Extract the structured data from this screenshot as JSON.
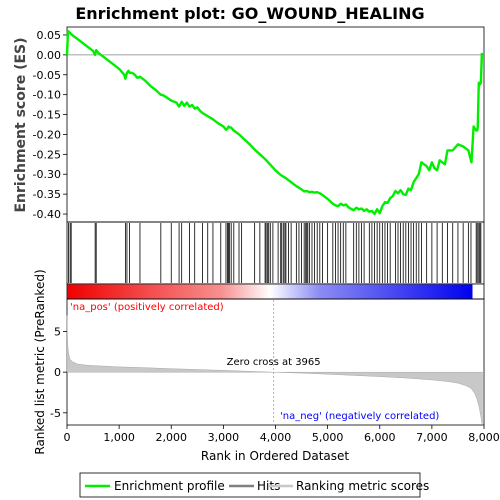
{
  "chart_data": {
    "type": "line",
    "title": "Enrichment plot: GO_WOUND_HEALING",
    "top_panel": {
      "ylabel": "Enrichment score (ES)",
      "ylim": [
        -0.42,
        0.07
      ],
      "yticks": [
        0.05,
        0.0,
        -0.05,
        -0.1,
        -0.15,
        -0.2,
        -0.25,
        -0.3,
        -0.35,
        -0.4
      ],
      "ytick_labels": [
        "0.05",
        "0.00",
        "-0.05",
        "-0.10",
        "-0.15",
        "-0.20",
        "-0.25",
        "-0.30",
        "-0.35",
        "-0.40"
      ],
      "series": [
        {
          "name": "Enrichment profile",
          "color": "#00ee00",
          "x": [
            0,
            20,
            60,
            100,
            200,
            300,
            400,
            500,
            540,
            560,
            600,
            700,
            800,
            900,
            1000,
            1100,
            1120,
            1150,
            1180,
            1200,
            1250,
            1300,
            1350,
            1400,
            1450,
            1500,
            1600,
            1700,
            1800,
            1850,
            1900,
            2000,
            2100,
            2150,
            2200,
            2250,
            2300,
            2350,
            2400,
            2450,
            2500,
            2550,
            2600,
            2700,
            2800,
            2900,
            3000,
            3050,
            3080,
            3100,
            3120,
            3150,
            3200,
            3300,
            3400,
            3500,
            3600,
            3700,
            3800,
            3900,
            4000,
            4100,
            4200,
            4300,
            4400,
            4500,
            4550,
            4600,
            4650,
            4700,
            4750,
            4800,
            4850,
            4900,
            5000,
            5050,
            5100,
            5150,
            5200,
            5250,
            5300,
            5350,
            5400,
            5450,
            5500,
            5550,
            5600,
            5650,
            5700,
            5750,
            5800,
            5850,
            5900,
            5950,
            6000,
            6050,
            6100,
            6150,
            6200,
            6250,
            6300,
            6350,
            6400,
            6450,
            6500,
            6550,
            6600,
            6650,
            6700,
            6750,
            6800,
            6850,
            6900,
            6950,
            7000,
            7050,
            7100,
            7150,
            7200,
            7250,
            7300,
            7400,
            7500,
            7600,
            7700,
            7740,
            7760,
            7800,
            7850,
            7870,
            7880,
            7900,
            7920,
            7940,
            7960
          ],
          "values": [
            0.0,
            0.06,
            0.055,
            0.05,
            0.04,
            0.03,
            0.02,
            0.01,
            0.0,
            0.012,
            0.005,
            -0.005,
            -0.015,
            -0.025,
            -0.035,
            -0.05,
            -0.06,
            -0.045,
            -0.04,
            -0.045,
            -0.045,
            -0.05,
            -0.058,
            -0.055,
            -0.06,
            -0.065,
            -0.078,
            -0.088,
            -0.1,
            -0.102,
            -0.106,
            -0.115,
            -0.12,
            -0.13,
            -0.118,
            -0.128,
            -0.12,
            -0.13,
            -0.126,
            -0.135,
            -0.132,
            -0.14,
            -0.146,
            -0.154,
            -0.162,
            -0.172,
            -0.18,
            -0.188,
            -0.185,
            -0.18,
            -0.182,
            -0.183,
            -0.19,
            -0.2,
            -0.212,
            -0.224,
            -0.238,
            -0.25,
            -0.262,
            -0.276,
            -0.29,
            -0.302,
            -0.31,
            -0.32,
            -0.33,
            -0.338,
            -0.343,
            -0.342,
            -0.345,
            -0.344,
            -0.346,
            -0.345,
            -0.348,
            -0.352,
            -0.362,
            -0.368,
            -0.374,
            -0.378,
            -0.38,
            -0.374,
            -0.378,
            -0.376,
            -0.383,
            -0.387,
            -0.39,
            -0.384,
            -0.388,
            -0.386,
            -0.392,
            -0.388,
            -0.394,
            -0.392,
            -0.4,
            -0.388,
            -0.398,
            -0.38,
            -0.37,
            -0.372,
            -0.36,
            -0.355,
            -0.342,
            -0.348,
            -0.34,
            -0.35,
            -0.352,
            -0.336,
            -0.34,
            -0.32,
            -0.31,
            -0.3,
            -0.27,
            -0.275,
            -0.28,
            -0.29,
            -0.27,
            -0.285,
            -0.29,
            -0.265,
            -0.27,
            -0.275,
            -0.24,
            -0.24,
            -0.225,
            -0.23,
            -0.24,
            -0.26,
            -0.27,
            -0.18,
            -0.19,
            -0.19,
            -0.185,
            -0.07,
            -0.075,
            -0.07,
            0.005
          ]
        }
      ]
    },
    "hits_panel": {
      "label": "Hits",
      "positions": [
        30,
        60,
        80,
        540,
        560,
        1120,
        1150,
        1200,
        1400,
        1800,
        2000,
        2150,
        2200,
        2350,
        2450,
        2600,
        2700,
        2800,
        2950,
        3050,
        3080,
        3100,
        3120,
        3150,
        3200,
        3300,
        3350,
        3600,
        3700,
        3800,
        3820,
        3850,
        3870,
        3900,
        3950,
        4050,
        4100,
        4120,
        4150,
        4180,
        4200,
        4250,
        4300,
        4400,
        4450,
        4500,
        4550,
        4580,
        4600,
        4620,
        4650,
        4700,
        4750,
        4800,
        4850,
        4900,
        5000,
        5100,
        5150,
        5200,
        5250,
        5300,
        5350,
        5500,
        5550,
        5600,
        5650,
        5700,
        5800,
        5850,
        5900,
        5950,
        6000,
        6050,
        6100,
        6150,
        6200,
        6300,
        6350,
        6400,
        6450,
        6500,
        6550,
        6600,
        6650,
        6700,
        6750,
        6800,
        6900,
        7000,
        7100,
        7200,
        7300,
        7400,
        7500,
        7600,
        7700,
        7750,
        7850,
        7870,
        7900,
        7920,
        7940
      ]
    },
    "bottom_panel": {
      "ylabel": "Ranked list metric (PreRanked)",
      "xlabel": "Rank in Ordered Dataset",
      "ylim": [
        -6.5,
        9
      ],
      "yticks": [
        5,
        0,
        -5
      ],
      "ytick_labels": [
        "5",
        "0",
        "-5"
      ],
      "metric_curve": {
        "name": "Ranking metric scores",
        "color": "#c8c8c8",
        "x": [
          0,
          5,
          15,
          30,
          60,
          100,
          200,
          400,
          700,
          1000,
          1500,
          2000,
          2500,
          3000,
          3500,
          3965,
          4500,
          5000,
          5500,
          6000,
          6500,
          7000,
          7300,
          7500,
          7650,
          7750,
          7820,
          7870,
          7910,
          7940,
          7960,
          7970
        ],
        "values": [
          7.0,
          5.0,
          3.2,
          2.3,
          1.6,
          1.3,
          1.0,
          0.85,
          0.75,
          0.65,
          0.55,
          0.42,
          0.33,
          0.22,
          0.1,
          0.0,
          -0.12,
          -0.25,
          -0.4,
          -0.55,
          -0.72,
          -0.95,
          -1.15,
          -1.35,
          -1.65,
          -2.0,
          -2.6,
          -3.4,
          -4.4,
          -5.5,
          -6.3,
          -6.5
        ]
      },
      "zero_cross": 3965,
      "annotations": {
        "zero_cross": "Zero cross at 3965",
        "pos": "'na_pos' (positively correlated)",
        "neg": "'na_neg' (negatively correlated)"
      }
    },
    "xlim": [
      0,
      8000
    ],
    "xticks": [
      0,
      1000,
      2000,
      3000,
      4000,
      5000,
      6000,
      7000,
      8000
    ],
    "xtick_labels": [
      "0",
      "1,000",
      "2,000",
      "3,000",
      "4,000",
      "5,000",
      "6,000",
      "7,000",
      "8,000"
    ],
    "n_genes": 7970,
    "colors": {
      "profile": "#00ee00",
      "pos_annot": "#ff0000",
      "neg_annot": "#0000ff",
      "bar_pos": "#f00000",
      "bar_mid": "#ffffff",
      "bar_neg": "#0000f0"
    },
    "legend": {
      "items": [
        {
          "label": "Enrichment profile",
          "color": "#00ee00"
        },
        {
          "label": "Hits",
          "color": "#808080"
        },
        {
          "label": "Ranking metric scores",
          "color": "#c8c8c8"
        }
      ],
      "position": "bottom"
    }
  }
}
